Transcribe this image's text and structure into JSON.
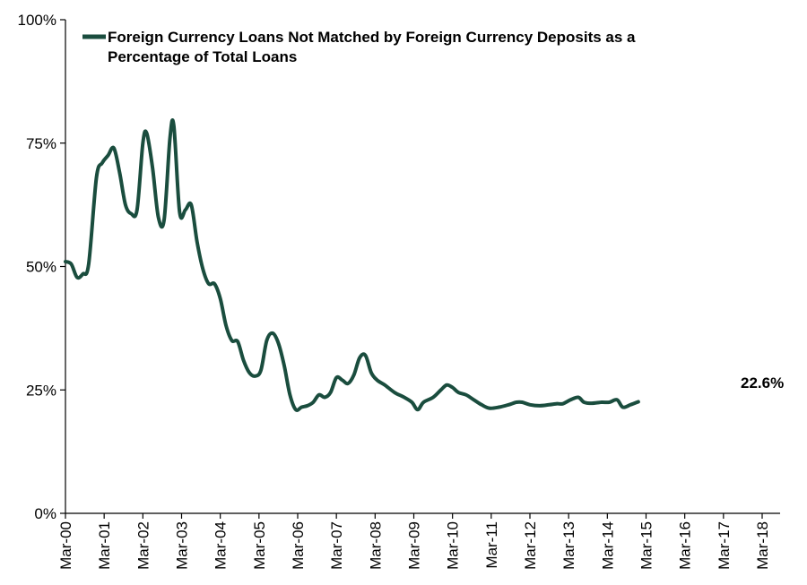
{
  "chart_data": {
    "type": "line",
    "title": "",
    "xlabel": "",
    "ylabel": "",
    "ylim": [
      0,
      100
    ],
    "grid": false,
    "legend_placement": "top-left",
    "y_ticks": [
      {
        "value": 0,
        "label": "0%"
      },
      {
        "value": 25,
        "label": "25%"
      },
      {
        "value": 50,
        "label": "50%"
      },
      {
        "value": 75,
        "label": "75%"
      },
      {
        "value": 100,
        "label": "100%"
      }
    ],
    "x_tick_labels": [
      "Mar-00",
      "Mar-01",
      "Mar-02",
      "Mar-03",
      "Mar-04",
      "Mar-05",
      "Mar-06",
      "Mar-07",
      "Mar-08",
      "Mar-09",
      "Mar-10",
      "Mar-11",
      "Mar-12",
      "Mar-13",
      "Mar-14",
      "Mar-15",
      "Mar-16",
      "Mar-17",
      "Mar-18"
    ],
    "series": [
      {
        "name": "Foreign Currency Loans Not Matched by Foreign Currency Deposits as a Percentage of Total Loans",
        "color": "#1a4d3e",
        "points": [
          [
            2000.0,
            51.0
          ],
          [
            2000.15,
            50.5
          ],
          [
            2000.3,
            47.8
          ],
          [
            2000.45,
            48.5
          ],
          [
            2000.6,
            50.5
          ],
          [
            2000.8,
            68.0
          ],
          [
            2000.95,
            71.0
          ],
          [
            2001.1,
            72.5
          ],
          [
            2001.25,
            74.0
          ],
          [
            2001.4,
            69.0
          ],
          [
            2001.55,
            62.5
          ],
          [
            2001.7,
            60.7
          ],
          [
            2001.85,
            61.5
          ],
          [
            2002.0,
            75.0
          ],
          [
            2002.1,
            77.0
          ],
          [
            2002.25,
            70.0
          ],
          [
            2002.4,
            60.0
          ],
          [
            2002.55,
            59.5
          ],
          [
            2002.7,
            76.0
          ],
          [
            2002.8,
            78.5
          ],
          [
            2002.95,
            61.0
          ],
          [
            2003.1,
            61.5
          ],
          [
            2003.25,
            62.5
          ],
          [
            2003.4,
            55.0
          ],
          [
            2003.55,
            49.5
          ],
          [
            2003.7,
            46.5
          ],
          [
            2003.85,
            46.5
          ],
          [
            2004.0,
            43.5
          ],
          [
            2004.15,
            38.0
          ],
          [
            2004.3,
            35.0
          ],
          [
            2004.45,
            34.8
          ],
          [
            2004.6,
            31.0
          ],
          [
            2004.75,
            28.5
          ],
          [
            2004.9,
            27.8
          ],
          [
            2005.05,
            29.0
          ],
          [
            2005.2,
            35.0
          ],
          [
            2005.35,
            36.5
          ],
          [
            2005.5,
            34.5
          ],
          [
            2005.65,
            30.0
          ],
          [
            2005.8,
            24.0
          ],
          [
            2005.95,
            21.0
          ],
          [
            2006.1,
            21.5
          ],
          [
            2006.25,
            21.8
          ],
          [
            2006.4,
            22.5
          ],
          [
            2006.55,
            24.0
          ],
          [
            2006.7,
            23.5
          ],
          [
            2006.85,
            24.5
          ],
          [
            2007.0,
            27.5
          ],
          [
            2007.15,
            27.0
          ],
          [
            2007.3,
            26.3
          ],
          [
            2007.45,
            28.0
          ],
          [
            2007.6,
            31.5
          ],
          [
            2007.75,
            32.0
          ],
          [
            2007.9,
            28.5
          ],
          [
            2008.05,
            27.0
          ],
          [
            2008.25,
            26.0
          ],
          [
            2008.5,
            24.5
          ],
          [
            2008.75,
            23.5
          ],
          [
            2008.95,
            22.5
          ],
          [
            2009.1,
            21.0
          ],
          [
            2009.25,
            22.5
          ],
          [
            2009.5,
            23.5
          ],
          [
            2009.7,
            25.0
          ],
          [
            2009.85,
            26.0
          ],
          [
            2010.0,
            25.5
          ],
          [
            2010.15,
            24.5
          ],
          [
            2010.35,
            24.0
          ],
          [
            2010.55,
            23.0
          ],
          [
            2010.75,
            22.0
          ],
          [
            2010.95,
            21.3
          ],
          [
            2011.2,
            21.5
          ],
          [
            2011.45,
            22.0
          ],
          [
            2011.65,
            22.5
          ],
          [
            2011.8,
            22.5
          ],
          [
            2012.0,
            22.0
          ],
          [
            2012.25,
            21.8
          ],
          [
            2012.5,
            22.0
          ],
          [
            2012.7,
            22.2
          ],
          [
            2012.85,
            22.2
          ],
          [
            2013.05,
            23.0
          ],
          [
            2013.25,
            23.5
          ],
          [
            2013.4,
            22.5
          ],
          [
            2013.6,
            22.3
          ],
          [
            2013.85,
            22.5
          ],
          [
            2014.05,
            22.5
          ],
          [
            2014.25,
            23.0
          ],
          [
            2014.4,
            21.5
          ],
          [
            2014.6,
            22.0
          ],
          [
            2014.8,
            22.6
          ]
        ]
      }
    ],
    "annotation": {
      "label": "22.6%",
      "x": 2014.8,
      "y": 22.6
    }
  }
}
